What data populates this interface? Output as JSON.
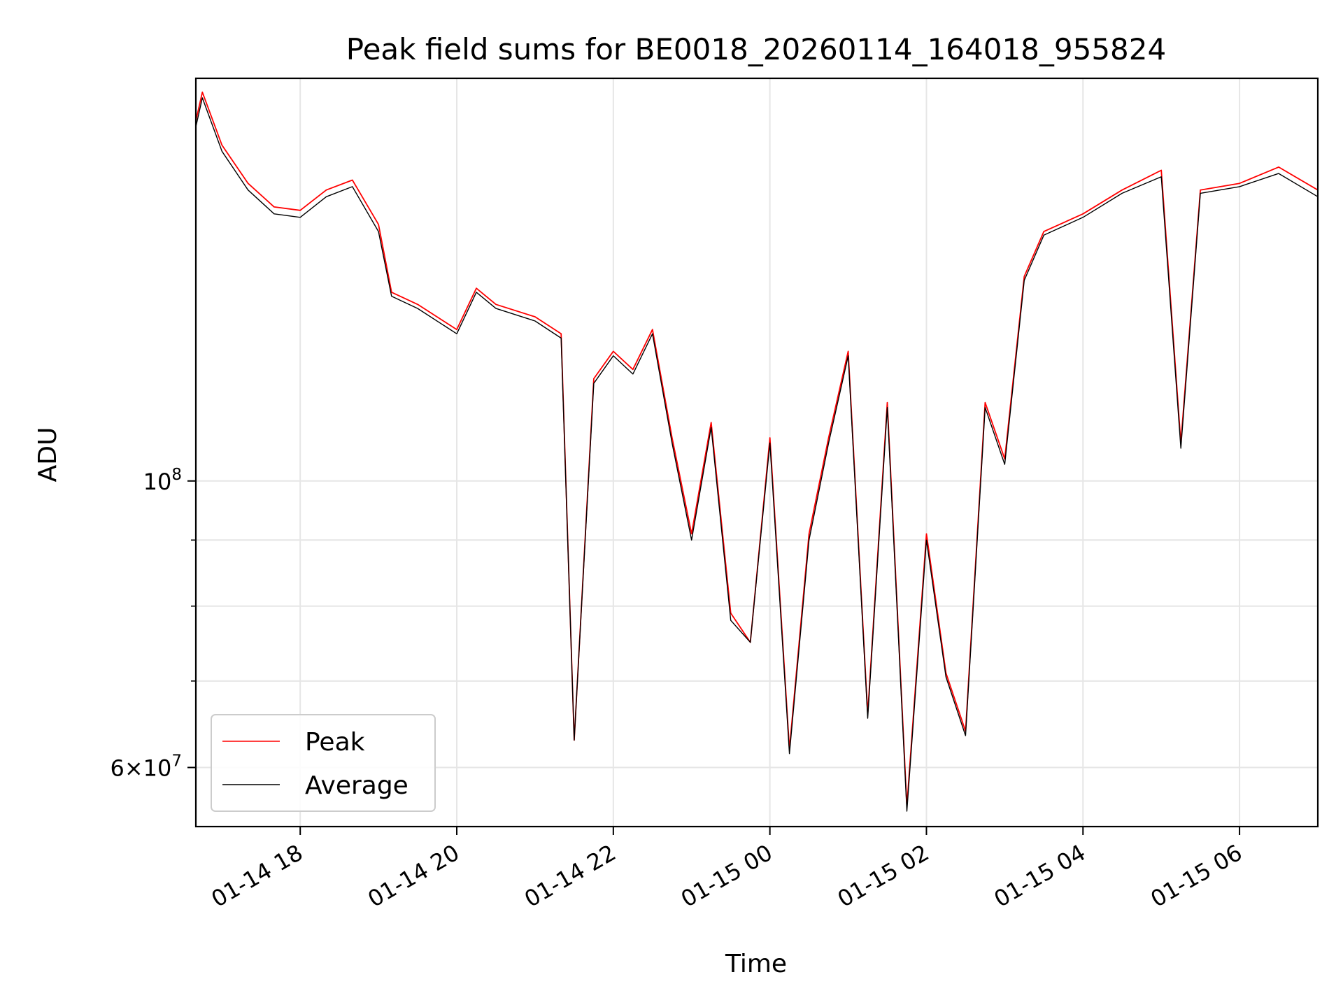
{
  "chart_data": {
    "type": "line",
    "title": "Peak field sums for BE0018_20260114_164018_955824",
    "xlabel": "Time",
    "ylabel": "ADU",
    "yscale": "log",
    "xlim": [
      "2026-01-14 16:40",
      "2026-01-15 07:00"
    ],
    "ylim": [
      54000000,
      205000000
    ],
    "grid": true,
    "legend_position": "lower-left",
    "x_tick_labels": [
      "01-14 18",
      "01-14 20",
      "01-14 22",
      "01-15 00",
      "01-15 02",
      "01-15 04",
      "01-15 06"
    ],
    "y_tick_labels": [
      {
        "value": 100000000,
        "base": "10",
        "exp": "8",
        "mantissa": ""
      },
      {
        "value": 60000000,
        "base": "10",
        "exp": "7",
        "mantissa": "6×"
      }
    ],
    "y_minor_ticks": [
      70000000,
      80000000,
      90000000
    ],
    "x": [
      "2026-01-14 16:40",
      "2026-01-14 16:45",
      "2026-01-14 17:00",
      "2026-01-14 17:20",
      "2026-01-14 17:40",
      "2026-01-14 18:00",
      "2026-01-14 18:20",
      "2026-01-14 18:40",
      "2026-01-14 19:00",
      "2026-01-14 19:10",
      "2026-01-14 19:30",
      "2026-01-14 20:00",
      "2026-01-14 20:15",
      "2026-01-14 20:30",
      "2026-01-14 21:00",
      "2026-01-14 21:20",
      "2026-01-14 21:30",
      "2026-01-14 21:45",
      "2026-01-14 22:00",
      "2026-01-14 22:15",
      "2026-01-14 22:30",
      "2026-01-14 22:45",
      "2026-01-14 23:00",
      "2026-01-14 23:15",
      "2026-01-14 23:30",
      "2026-01-14 23:45",
      "2026-01-15 00:00",
      "2026-01-15 00:15",
      "2026-01-15 00:30",
      "2026-01-15 00:45",
      "2026-01-15 01:00",
      "2026-01-15 01:15",
      "2026-01-15 01:30",
      "2026-01-15 01:45",
      "2026-01-15 02:00",
      "2026-01-15 02:15",
      "2026-01-15 02:30",
      "2026-01-15 02:45",
      "2026-01-15 03:00",
      "2026-01-15 03:15",
      "2026-01-15 03:30",
      "2026-01-15 04:00",
      "2026-01-15 04:30",
      "2026-01-15 05:00",
      "2026-01-15 05:15",
      "2026-01-15 05:30",
      "2026-01-15 06:00",
      "2026-01-15 06:30",
      "2026-01-15 07:00"
    ],
    "series": [
      {
        "name": "Peak",
        "color": "#ff0000",
        "values": [
          190000000,
          200000000,
          182000000,
          170000000,
          163000000,
          162000000,
          168000000,
          171000000,
          158000000,
          140000000,
          137000000,
          131000000,
          141000000,
          137000000,
          134000000,
          130000000,
          63000000,
          120000000,
          126000000,
          122000000,
          131000000,
          108000000,
          91000000,
          111000000,
          79000000,
          75000000,
          108000000,
          62000000,
          91000000,
          108000000,
          126000000,
          66000000,
          115000000,
          56000000,
          91000000,
          71000000,
          64000000,
          115000000,
          104000000,
          144000000,
          156000000,
          161000000,
          168000000,
          174000000,
          107000000,
          168000000,
          170000000,
          175000000,
          168000000
        ]
      },
      {
        "name": "Average",
        "color": "#000000",
        "values": [
          188000000,
          198000000,
          180000000,
          168000000,
          161000000,
          160000000,
          166000000,
          169000000,
          156000000,
          139000000,
          136000000,
          130000000,
          140000000,
          136000000,
          133000000,
          129000000,
          63000000,
          119000000,
          125000000,
          121000000,
          130000000,
          107000000,
          90000000,
          110000000,
          78000000,
          75000000,
          107000000,
          61500000,
          90000000,
          107000000,
          125000000,
          65500000,
          114000000,
          55500000,
          90000000,
          70500000,
          63500000,
          114000000,
          103000000,
          143000000,
          155000000,
          160000000,
          167000000,
          172000000,
          106000000,
          167000000,
          169000000,
          173000000,
          166000000
        ]
      }
    ]
  }
}
